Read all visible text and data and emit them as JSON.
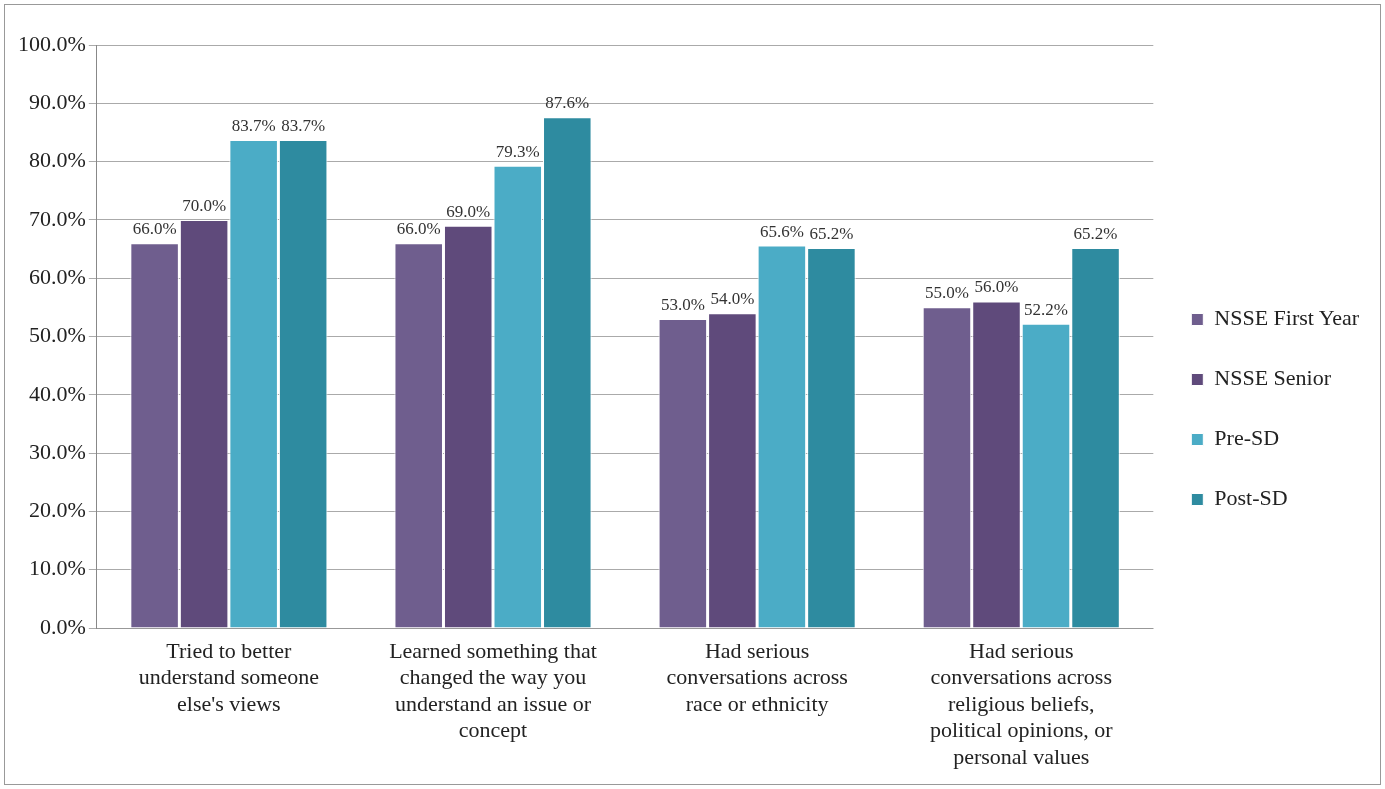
{
  "chart_data": {
    "type": "bar",
    "categories": [
      "Tried to better understand someone else's views",
      "Learned something that changed the way you understand an issue or concept",
      "Had serious conversations across race or ethnicity",
      "Had serious conversations across religious beliefs, political opinions, or personal values"
    ],
    "series": [
      {
        "name": "NSSE First Year",
        "color": "#6f5e8e",
        "values": [
          66.0,
          66.0,
          53.0,
          55.0
        ],
        "value_labels": [
          "66.0%",
          "66.0%",
          "53.0%",
          "55.0%"
        ]
      },
      {
        "name": "NSSE Senior",
        "color": "#5f4a7b",
        "values": [
          70.0,
          69.0,
          54.0,
          56.0
        ],
        "value_labels": [
          "70.0%",
          "69.0%",
          "54.0%",
          "56.0%"
        ]
      },
      {
        "name": "Pre-SD",
        "color": "#4bacc6",
        "values": [
          83.7,
          79.3,
          65.6,
          52.2
        ],
        "value_labels": [
          "83.7%",
          "79.3%",
          "65.6%",
          "52.2%"
        ]
      },
      {
        "name": "Post-SD",
        "color": "#2e8ba0",
        "values": [
          83.7,
          87.6,
          65.2,
          65.2
        ],
        "value_labels": [
          "83.7%",
          "87.6%",
          "65.2%",
          "65.2%"
        ]
      }
    ],
    "ylim": [
      0,
      100
    ],
    "yticks": [
      {
        "value": 0,
        "label": "0.0%"
      },
      {
        "value": 10,
        "label": "10.0%"
      },
      {
        "value": 20,
        "label": "20.0%"
      },
      {
        "value": 30,
        "label": "30.0%"
      },
      {
        "value": 40,
        "label": "40.0%"
      },
      {
        "value": 50,
        "label": "50.0%"
      },
      {
        "value": 60,
        "label": "60.0%"
      },
      {
        "value": 70,
        "label": "70.0%"
      },
      {
        "value": 80,
        "label": "80.0%"
      },
      {
        "value": 90,
        "label": "90.0%"
      },
      {
        "value": 100,
        "label": "100.0%"
      }
    ],
    "grid": "y",
    "legend": "right"
  }
}
